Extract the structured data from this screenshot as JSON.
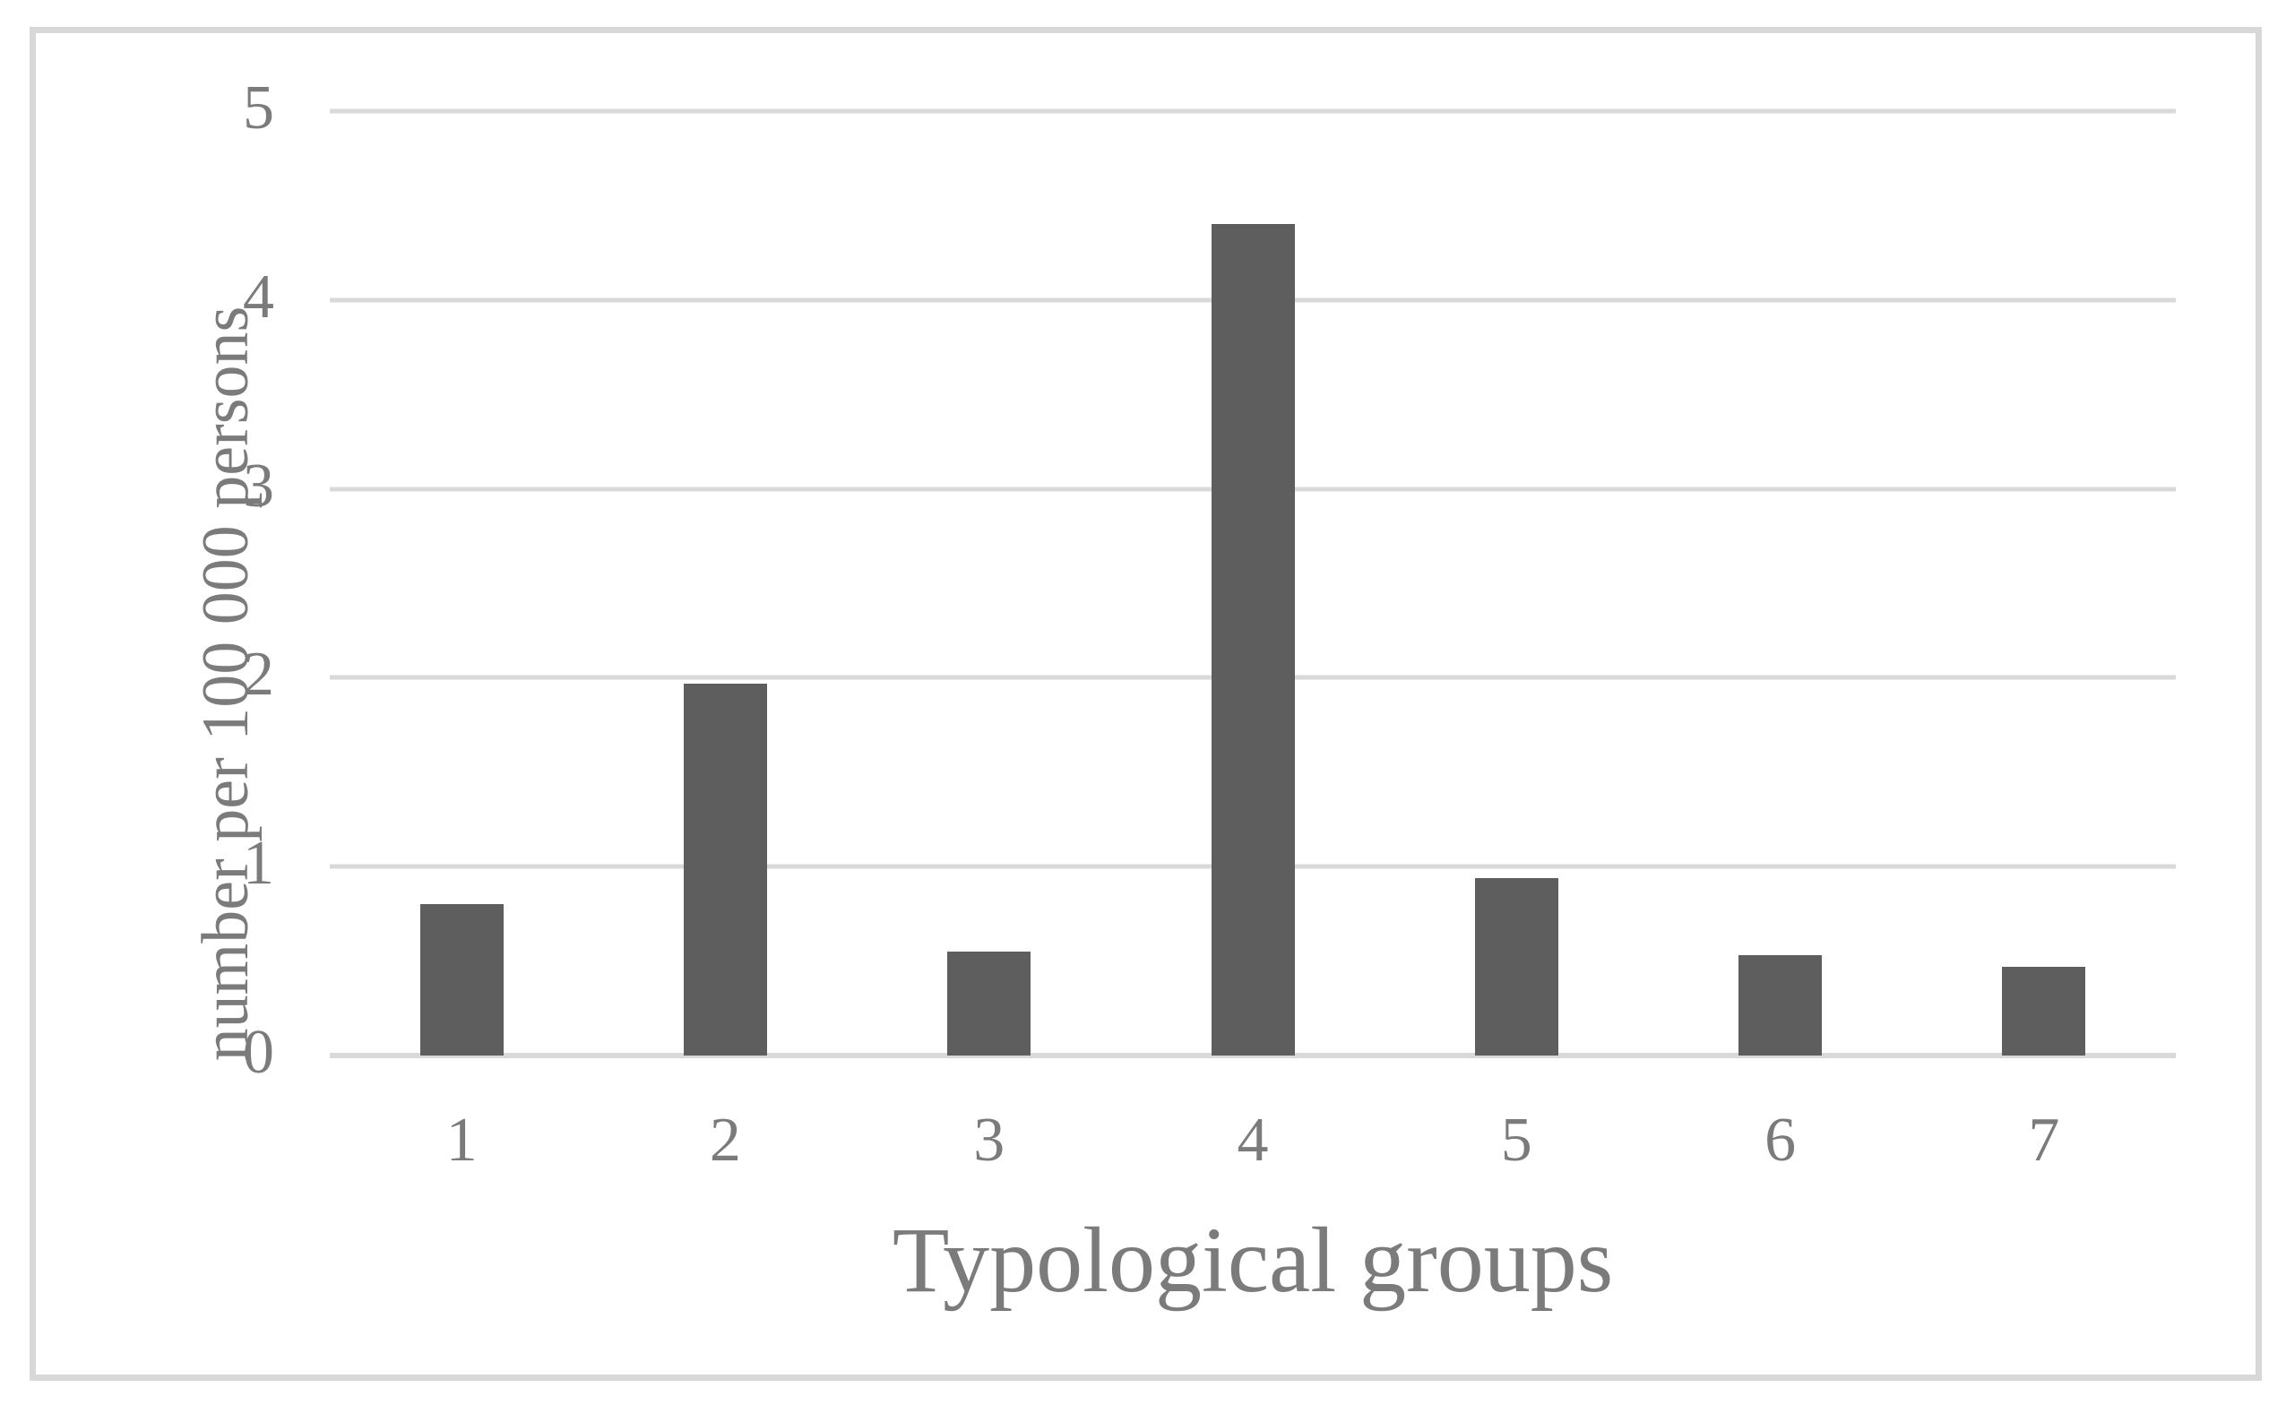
{
  "chart_data": {
    "type": "bar",
    "categories": [
      "1",
      "2",
      "3",
      "4",
      "5",
      "6",
      "7"
    ],
    "values": [
      0.8,
      1.97,
      0.55,
      4.4,
      0.94,
      0.53,
      0.47
    ],
    "title": "",
    "xlabel": "Typological groups",
    "ylabel": "number per 100 000 persons",
    "ylim": [
      0,
      5
    ],
    "yticks": [
      0,
      1,
      2,
      3,
      4,
      5
    ],
    "grid": true,
    "legend_position": "none",
    "bar_color": "#5e5e5e",
    "gridline_color": "#d9d9d9",
    "axis_line_color": "#d9d9d9",
    "text_color": "#7b7b7b",
    "frame_color": "#d8d8d8",
    "background_color": "#ffffff"
  }
}
